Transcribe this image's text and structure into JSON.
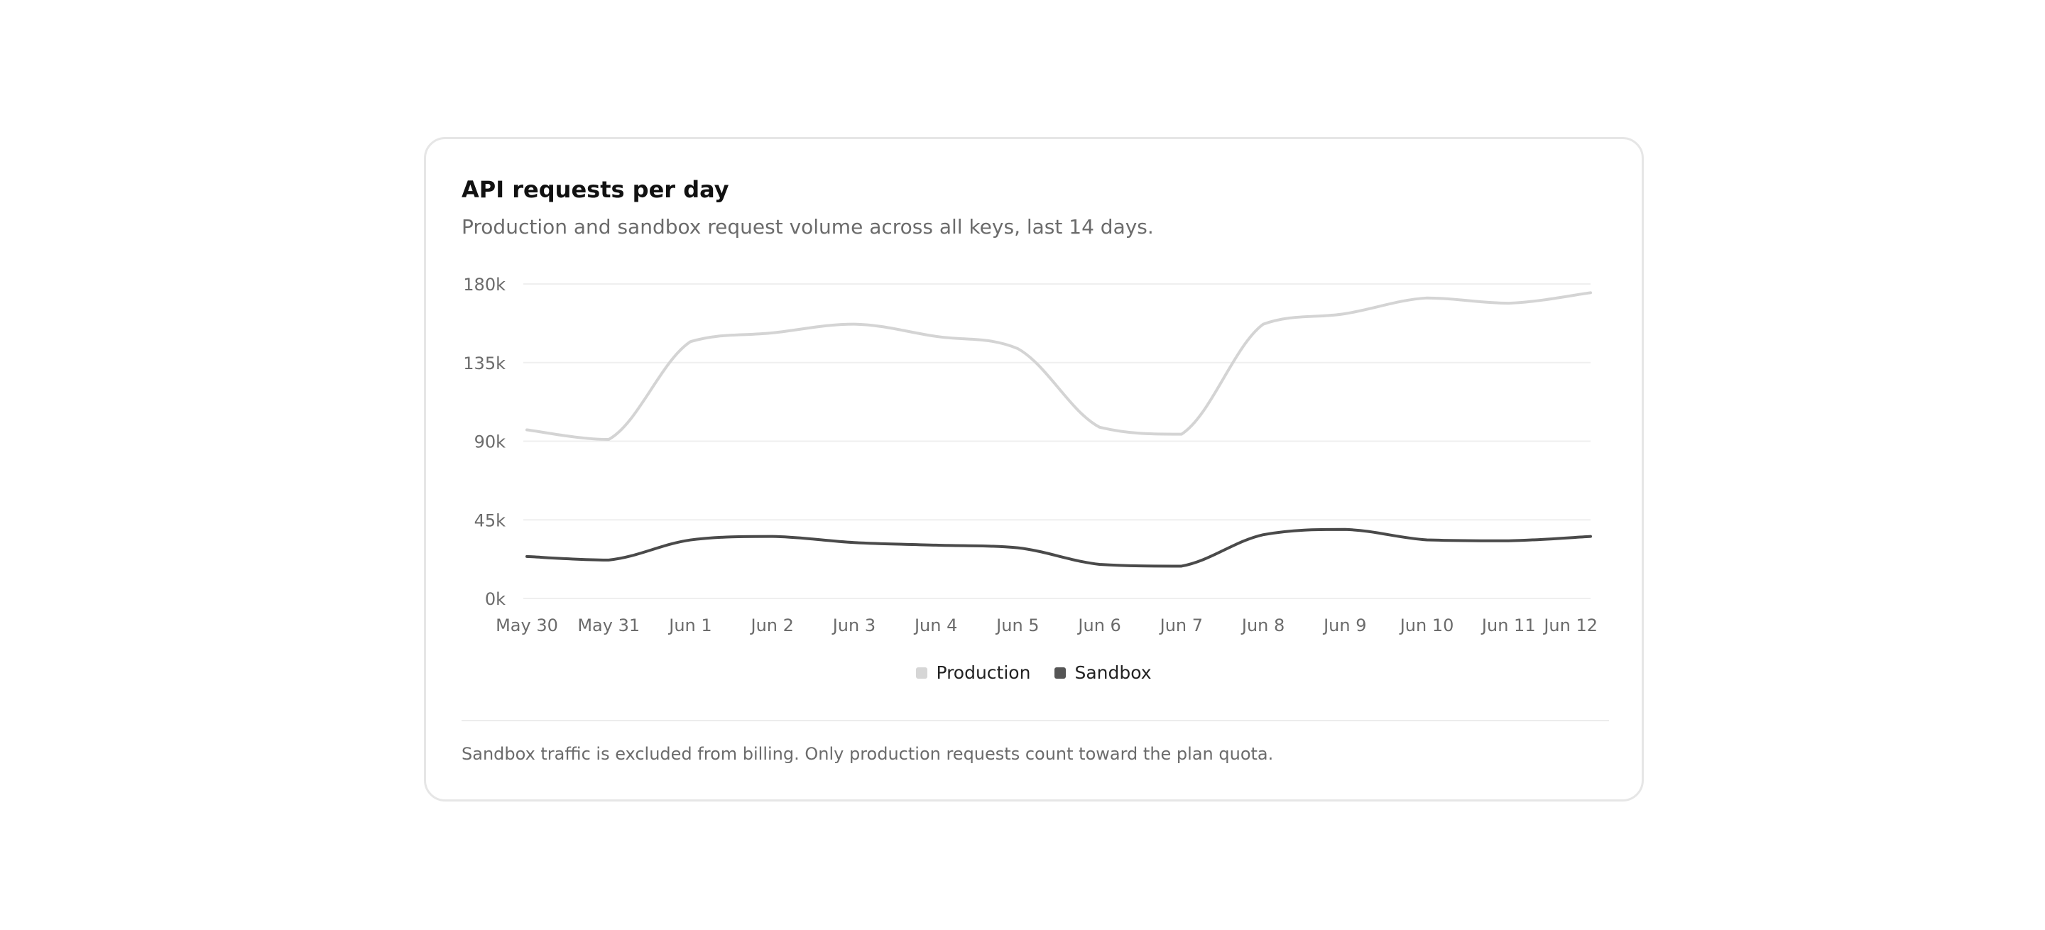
{
  "card": {
    "title": "API requests per day",
    "subtitle": "Production and sandbox request volume across all keys, last 14 days.",
    "footnote": "Sandbox traffic is excluded from billing. Only production requests count toward the plan quota."
  },
  "chart_data": {
    "type": "line",
    "title": "API requests per day",
    "subtitle": "Production and sandbox request volume across all keys, last 14 days.",
    "xlabel": "",
    "ylabel": "",
    "ylim": [
      0,
      180000
    ],
    "yticks": [
      0,
      45000,
      90000,
      135000,
      180000
    ],
    "ytick_labels": [
      "0k",
      "45k",
      "90k",
      "135k",
      "180k"
    ],
    "categories": [
      "May 30",
      "May 31",
      "Jun 1",
      "Jun 2",
      "Jun 3",
      "Jun 4",
      "Jun 5",
      "Jun 6",
      "Jun 7",
      "Jun 8",
      "Jun 9",
      "Jun 10",
      "Jun 11",
      "Jun 12"
    ],
    "grid": true,
    "legend": "bottom-center",
    "series": [
      {
        "name": "Production",
        "color": "#d4d4d4",
        "values": [
          96500,
          91000,
          147000,
          152000,
          157000,
          150000,
          143000,
          98000,
          94000,
          157000,
          163000,
          172000,
          169000,
          175000
        ]
      },
      {
        "name": "Sandbox",
        "color": "#4a4a4a",
        "values": [
          24000,
          22000,
          33500,
          35500,
          32000,
          30500,
          29000,
          19500,
          18500,
          36500,
          39500,
          33500,
          33000,
          35500
        ]
      }
    ]
  }
}
